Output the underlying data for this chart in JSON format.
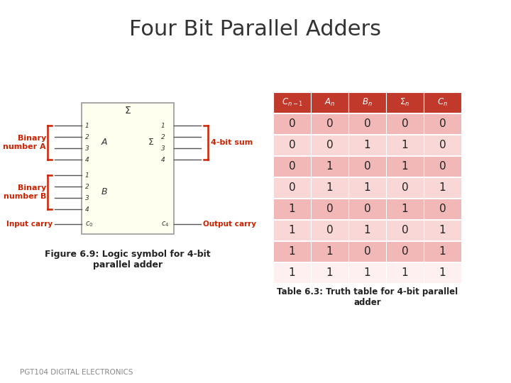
{
  "title": "Four Bit Parallel Adders",
  "title_fontsize": 22,
  "title_color": "#333333",
  "slide_bg": "#ffffff",
  "table_header_color": "#c0392b",
  "table_odd_row_color": "#f2b8b8",
  "table_even_row_color": "#fad7d7",
  "table_last_row_color": "#fef0f0",
  "table_data": [
    [
      0,
      0,
      0,
      0,
      0
    ],
    [
      0,
      0,
      1,
      1,
      0
    ],
    [
      0,
      1,
      0,
      1,
      0
    ],
    [
      0,
      1,
      1,
      0,
      1
    ],
    [
      1,
      0,
      0,
      1,
      0
    ],
    [
      1,
      0,
      1,
      0,
      1
    ],
    [
      1,
      1,
      0,
      0,
      1
    ],
    [
      1,
      1,
      1,
      1,
      1
    ]
  ],
  "table_caption": "Table 6.3: Truth table for 4-bit parallel\nadder",
  "figure_caption": "Figure 6.9: Logic symbol for 4-bit\nparallel adder",
  "footer_text": "PGT104 DIGITAL ELECTRONICS",
  "label_binary_a": "Binary\nnumber A",
  "label_binary_b": "Binary\nnumber B",
  "label_input_carry": "Input carry",
  "label_4bit_sum": "4-bit sum",
  "label_output_carry": "Output carry",
  "box_fill": "#fffff0",
  "box_edge": "#999999",
  "red_color": "#cc2200",
  "line_color": "#555555",
  "white": "#ffffff",
  "dark": "#222222",
  "gray_text": "#888888"
}
